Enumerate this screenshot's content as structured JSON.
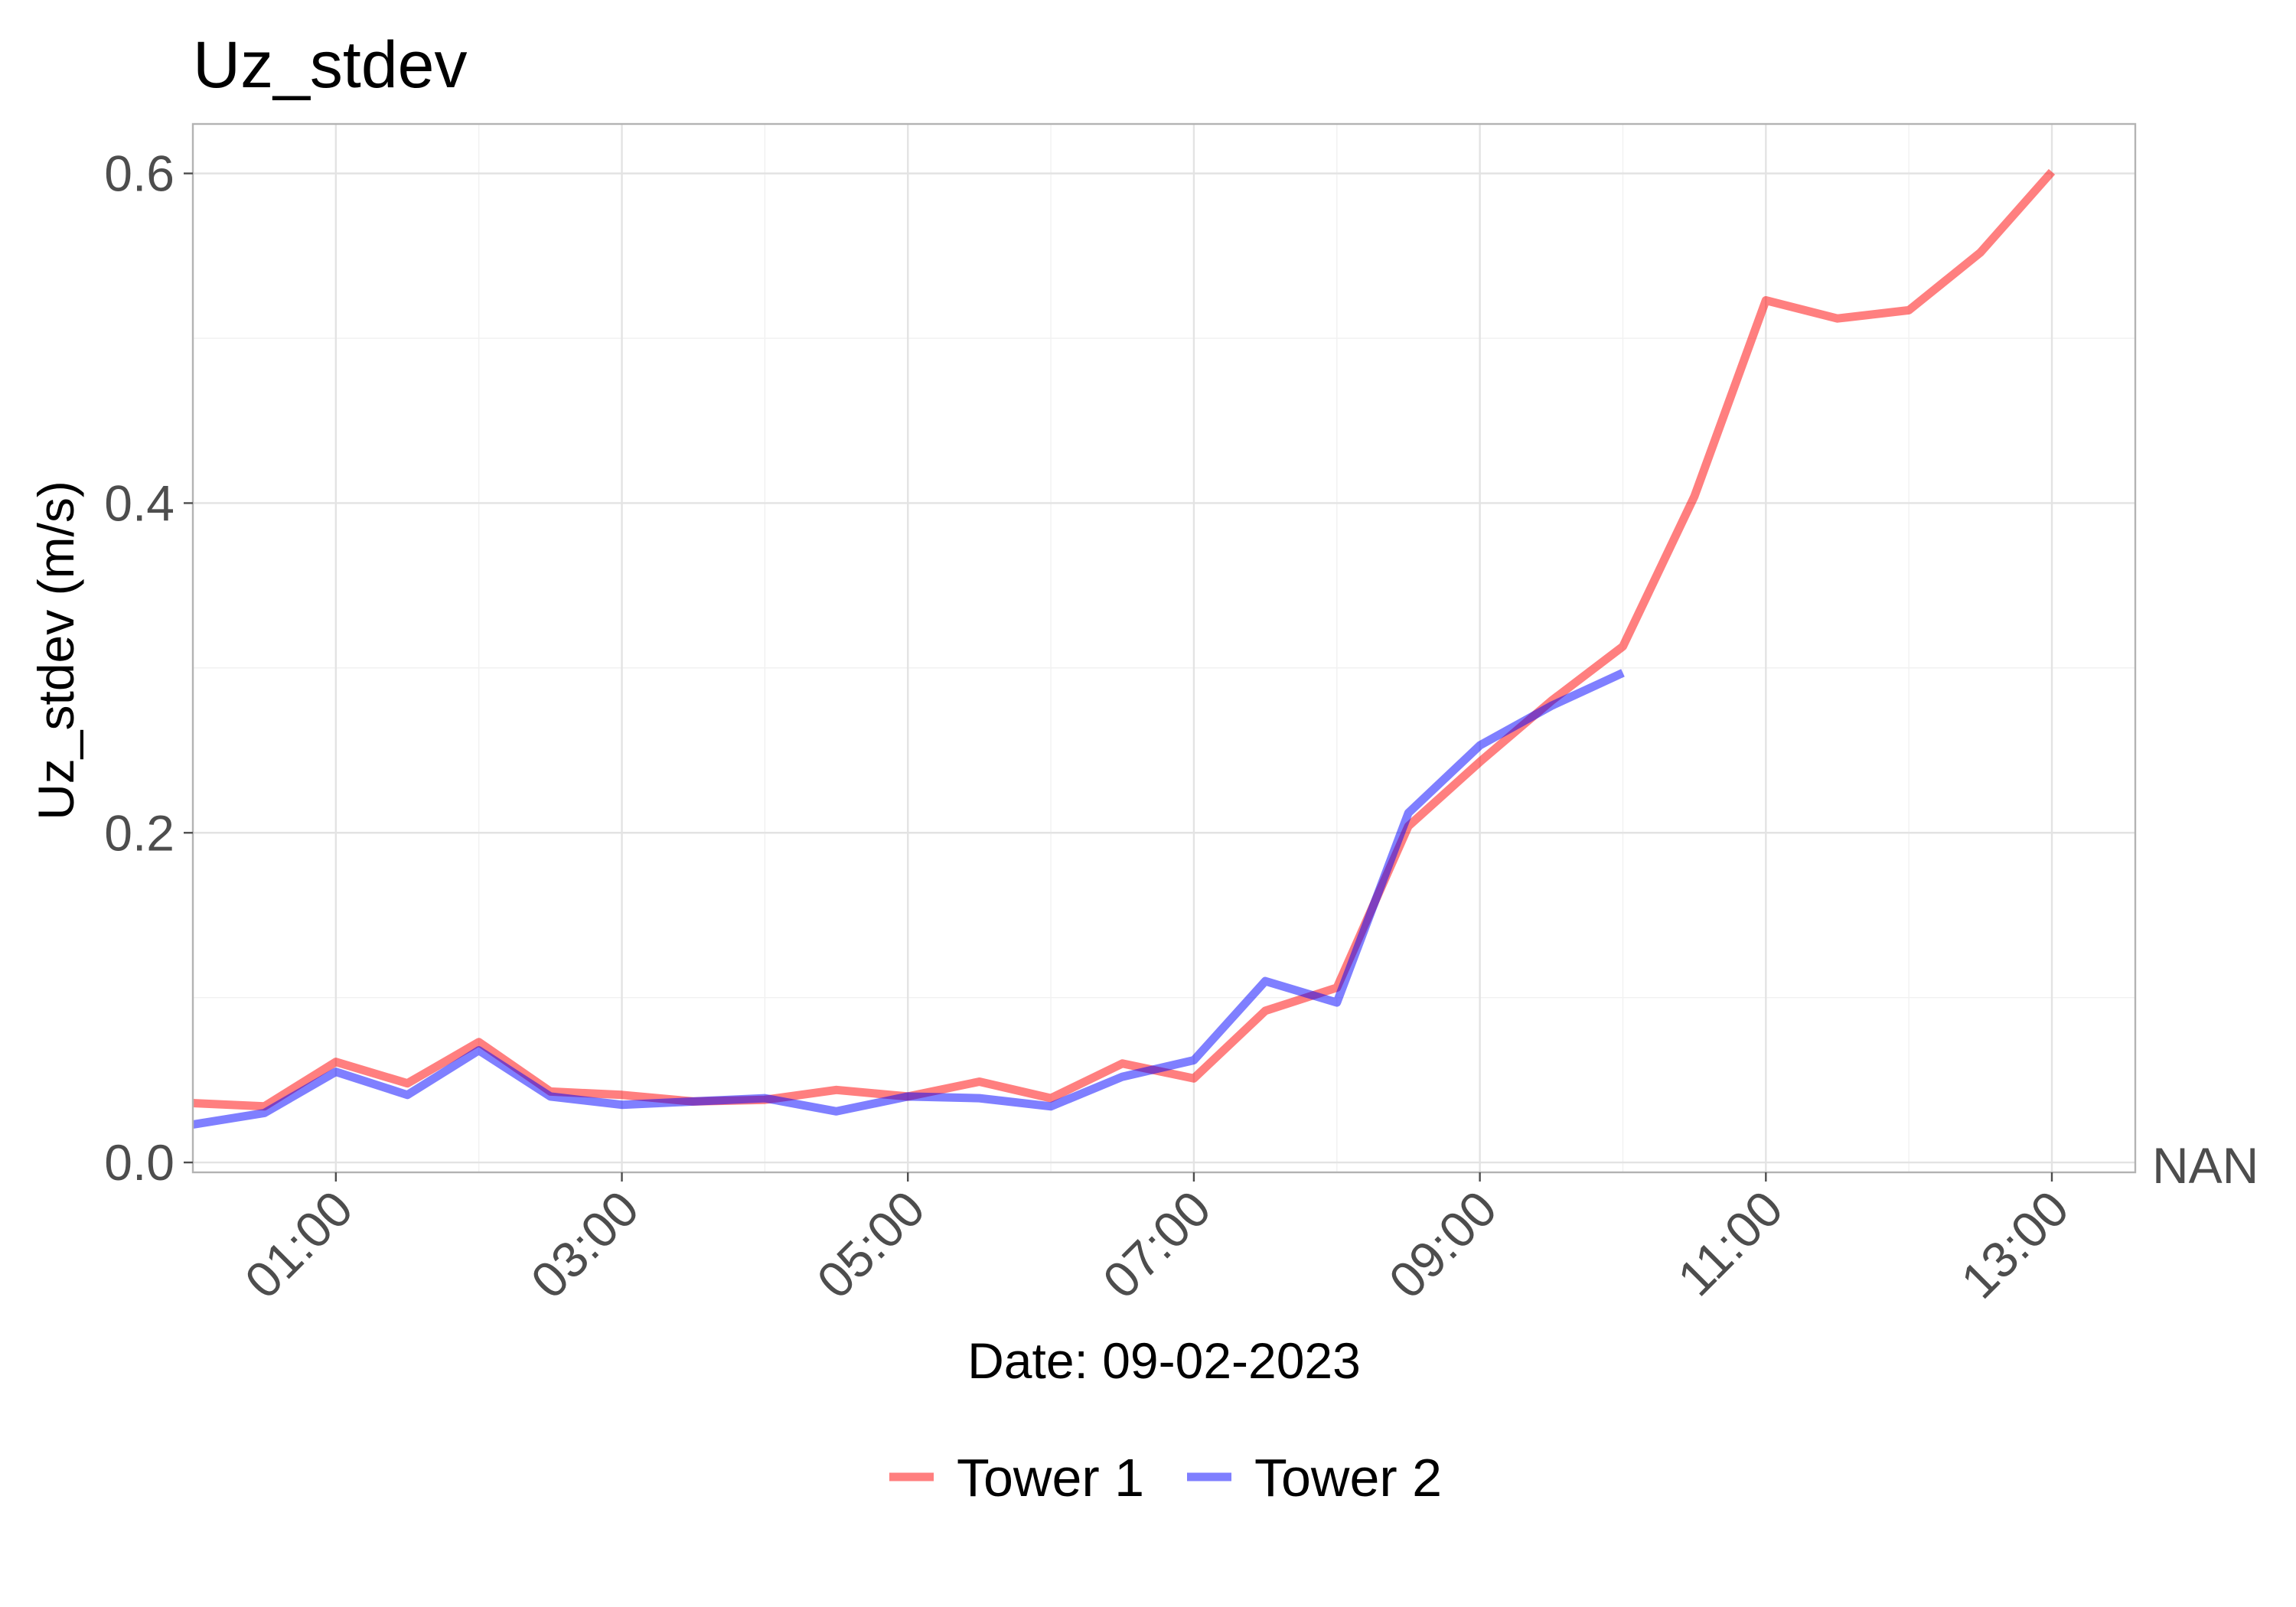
{
  "chart_data": {
    "type": "line",
    "title": "Uz_stdev",
    "xlabel": "Date: 09-02-2023",
    "ylabel": "Uz_stdev (m/s)",
    "x_tick_labels": [
      "01:00",
      "03:00",
      "05:00",
      "07:00",
      "09:00",
      "11:00",
      "13:00"
    ],
    "x_tick_values": [
      1,
      3,
      5,
      7,
      9,
      11,
      13
    ],
    "y_tick_labels": [
      "0.0",
      "0.2",
      "0.4",
      "0.6"
    ],
    "y_tick_values": [
      0,
      0.2,
      0.4,
      0.6
    ],
    "extra_y_label": "NAN",
    "xlim": [
      "00:00",
      "13:35"
    ],
    "ylim": [
      -0.006,
      0.63
    ],
    "grid": true,
    "legend_position": "bottom",
    "series": [
      {
        "name": "Tower 1",
        "color": "#ff0000",
        "x": [
          "00:00",
          "00:30",
          "01:00",
          "01:30",
          "02:00",
          "02:30",
          "03:00",
          "03:30",
          "04:00",
          "04:30",
          "05:00",
          "05:30",
          "06:00",
          "06:30",
          "07:00",
          "07:30",
          "08:00",
          "08:30",
          "09:00",
          "09:30",
          "10:00",
          "10:30",
          "11:00",
          "11:30",
          "12:00",
          "12:30",
          "13:00"
        ],
        "values": [
          0.036,
          0.034,
          0.061,
          0.048,
          0.073,
          0.043,
          0.041,
          0.037,
          0.038,
          0.044,
          0.04,
          0.049,
          0.039,
          0.06,
          0.051,
          0.092,
          0.106,
          0.204,
          0.243,
          0.28,
          0.313,
          0.404,
          0.523,
          0.512,
          0.517,
          0.552,
          0.601
        ]
      },
      {
        "name": "Tower 2",
        "color": "#0000ff",
        "x": [
          "00:00",
          "00:30",
          "01:00",
          "01:30",
          "02:00",
          "02:30",
          "03:00",
          "03:30",
          "04:00",
          "04:30",
          "05:00",
          "05:30",
          "06:00",
          "06:30",
          "07:00",
          "07:30",
          "08:00",
          "08:30",
          "09:00",
          "09:30",
          "10:00"
        ],
        "values": [
          0.023,
          0.03,
          0.055,
          0.041,
          0.068,
          0.04,
          0.035,
          0.037,
          0.039,
          0.031,
          0.04,
          0.039,
          0.034,
          0.052,
          0.062,
          0.11,
          0.097,
          0.212,
          0.253,
          0.277,
          0.297
        ]
      }
    ]
  }
}
